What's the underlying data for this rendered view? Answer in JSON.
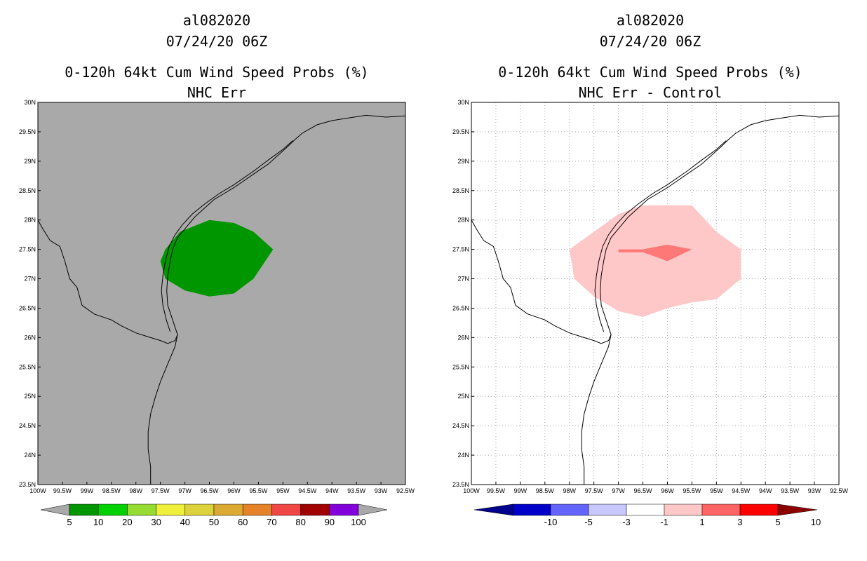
{
  "chart_data": [
    {
      "type": "contour-map",
      "storm_id": "al082020",
      "datetime": "07/24/20 06Z",
      "title": "0-120h 64kt Cum Wind Speed Probs (%)",
      "subtitle": "NHC Err",
      "xlim": [
        -100,
        -92.5
      ],
      "ylim": [
        23.5,
        30
      ],
      "x_ticks": [
        "100W",
        "99.5W",
        "99W",
        "98.5W",
        "98W",
        "97.5W",
        "97W",
        "96.5W",
        "96W",
        "95.5W",
        "95W",
        "94.5W",
        "94W",
        "93.5W",
        "93W",
        "92.5W"
      ],
      "y_ticks": [
        "30N",
        "29.5N",
        "29N",
        "28.5N",
        "28N",
        "27.5N",
        "27N",
        "26.5N",
        "26N",
        "25.5N",
        "25N",
        "24.5N",
        "24N",
        "23.5N"
      ],
      "background_color": "#a9a9a9",
      "grid": false,
      "probability_regions": [
        {
          "range": "5-10%",
          "color": "#009600",
          "points": [
            [
              -97.4,
              27.5
            ],
            [
              -97.1,
              27.8
            ],
            [
              -96.5,
              28.0
            ],
            [
              -96.0,
              27.95
            ],
            [
              -95.6,
              27.8
            ],
            [
              -95.2,
              27.5
            ],
            [
              -95.6,
              27.0
            ],
            [
              -96.0,
              26.75
            ],
            [
              -96.5,
              26.7
            ],
            [
              -97.0,
              26.8
            ],
            [
              -97.4,
              27.0
            ],
            [
              -97.5,
              27.3
            ]
          ]
        }
      ],
      "colorbar": {
        "labels": [
          "5",
          "10",
          "20",
          "30",
          "40",
          "50",
          "60",
          "70",
          "80",
          "90",
          "100"
        ],
        "colors": [
          "#009600",
          "#00d200",
          "#96dc32",
          "#f0f03c",
          "#dcd23c",
          "#dcaa32",
          "#e68228",
          "#f04646",
          "#a00000",
          "#8200dc"
        ]
      }
    },
    {
      "type": "contour-map",
      "storm_id": "al082020",
      "datetime": "07/24/20 06Z",
      "title": "0-120h 64kt Cum Wind Speed Probs (%)",
      "subtitle": "NHC Err - Control",
      "xlim": [
        -100,
        -92.5
      ],
      "ylim": [
        23.5,
        30
      ],
      "x_ticks": [
        "100W",
        "99.5W",
        "99W",
        "98.5W",
        "98W",
        "97.5W",
        "97W",
        "96.5W",
        "96W",
        "95.5W",
        "95W",
        "94.5W",
        "94W",
        "93.5W",
        "93W",
        "92.5W"
      ],
      "y_ticks": [
        "30N",
        "29.5N",
        "29N",
        "28.5N",
        "28N",
        "27.5N",
        "27N",
        "26.5N",
        "26N",
        "25.5N",
        "25N",
        "24.5N",
        "24N",
        "23.5N"
      ],
      "background_color": "#ffffff",
      "grid": true,
      "difference_regions": [
        {
          "range": "1 to 3",
          "color": "#ffc8c8",
          "points": [
            [
              -98.0,
              27.5
            ],
            [
              -97.5,
              27.8
            ],
            [
              -97.0,
              28.1
            ],
            [
              -96.5,
              28.25
            ],
            [
              -95.5,
              28.25
            ],
            [
              -95.0,
              27.8
            ],
            [
              -94.5,
              27.5
            ],
            [
              -94.5,
              27.0
            ],
            [
              -95.0,
              26.65
            ],
            [
              -95.5,
              26.6
            ],
            [
              -96.0,
              26.5
            ],
            [
              -96.5,
              26.35
            ],
            [
              -97.0,
              26.45
            ],
            [
              -97.5,
              26.7
            ],
            [
              -97.9,
              27.0
            ]
          ]
        },
        {
          "range": "3 to 5",
          "color": "#ff7878",
          "points": [
            [
              -97.0,
              27.5
            ],
            [
              -96.5,
              27.5
            ],
            [
              -96.0,
              27.58
            ],
            [
              -95.5,
              27.5
            ],
            [
              -96.0,
              27.3
            ],
            [
              -96.5,
              27.45
            ],
            [
              -97.0,
              27.45
            ]
          ]
        }
      ],
      "colorbar": {
        "labels": [
          "-10",
          "-5",
          "-3",
          "-1",
          "1",
          "3",
          "5",
          "10"
        ],
        "colors": [
          "#0000c8",
          "#6464ff",
          "#c8c8ff",
          "#ffffff",
          "#ffc8c8",
          "#ff6464",
          "#ff0000"
        ],
        "end_colors": [
          "#00008c",
          "#8c0000"
        ]
      }
    }
  ],
  "map": {
    "coastline": [
      [
        -92.5,
        29.77
      ],
      [
        -92.9,
        29.75
      ],
      [
        -93.3,
        29.78
      ],
      [
        -93.7,
        29.73
      ],
      [
        -94.0,
        29.69
      ],
      [
        -94.3,
        29.62
      ],
      [
        -94.6,
        29.48
      ],
      [
        -94.75,
        29.37
      ],
      [
        -94.9,
        29.25
      ],
      [
        -95.1,
        29.1
      ],
      [
        -95.3,
        28.95
      ],
      [
        -95.6,
        28.78
      ],
      [
        -96.0,
        28.55
      ],
      [
        -96.2,
        28.45
      ],
      [
        -96.4,
        28.35
      ],
      [
        -96.6,
        28.2
      ],
      [
        -96.8,
        28.05
      ],
      [
        -97.0,
        27.85
      ],
      [
        -97.15,
        27.7
      ],
      [
        -97.25,
        27.5
      ],
      [
        -97.3,
        27.3
      ],
      [
        -97.35,
        27.05
      ],
      [
        -97.37,
        26.8
      ],
      [
        -97.35,
        26.55
      ],
      [
        -97.25,
        26.3
      ],
      [
        -97.15,
        26.05
      ],
      [
        -97.2,
        25.85
      ],
      [
        -97.35,
        25.55
      ],
      [
        -97.5,
        25.25
      ],
      [
        -97.6,
        25.0
      ],
      [
        -97.7,
        24.7
      ],
      [
        -97.75,
        24.4
      ],
      [
        -97.75,
        24.1
      ],
      [
        -97.7,
        23.8
      ],
      [
        -97.7,
        23.5
      ]
    ],
    "inner_coastline": [
      [
        -94.8,
        29.35
      ],
      [
        -95.0,
        29.2
      ],
      [
        -95.3,
        29.02
      ],
      [
        -95.6,
        28.83
      ],
      [
        -96.0,
        28.6
      ],
      [
        -96.3,
        28.45
      ],
      [
        -96.6,
        28.27
      ],
      [
        -96.85,
        28.1
      ],
      [
        -97.05,
        27.92
      ],
      [
        -97.2,
        27.75
      ],
      [
        -97.32,
        27.55
      ],
      [
        -97.4,
        27.3
      ],
      [
        -97.45,
        27.05
      ],
      [
        -97.48,
        26.8
      ],
      [
        -97.45,
        26.55
      ],
      [
        -97.38,
        26.3
      ],
      [
        -97.3,
        26.1
      ]
    ],
    "border": [
      [
        -100.0,
        28.0
      ],
      [
        -99.9,
        27.85
      ],
      [
        -99.75,
        27.65
      ],
      [
        -99.55,
        27.55
      ],
      [
        -99.45,
        27.3
      ],
      [
        -99.35,
        27.0
      ],
      [
        -99.2,
        26.85
      ],
      [
        -99.1,
        26.55
      ],
      [
        -98.85,
        26.4
      ],
      [
        -98.5,
        26.3
      ],
      [
        -98.3,
        26.2
      ],
      [
        -98.0,
        26.08
      ],
      [
        -97.7,
        26.0
      ],
      [
        -97.5,
        25.95
      ],
      [
        -97.35,
        25.9
      ],
      [
        -97.2,
        25.95
      ],
      [
        -97.15,
        26.05
      ]
    ]
  },
  "colors": {
    "gray_bg": "#a9a9a9",
    "grid": "#aaaaaa"
  }
}
